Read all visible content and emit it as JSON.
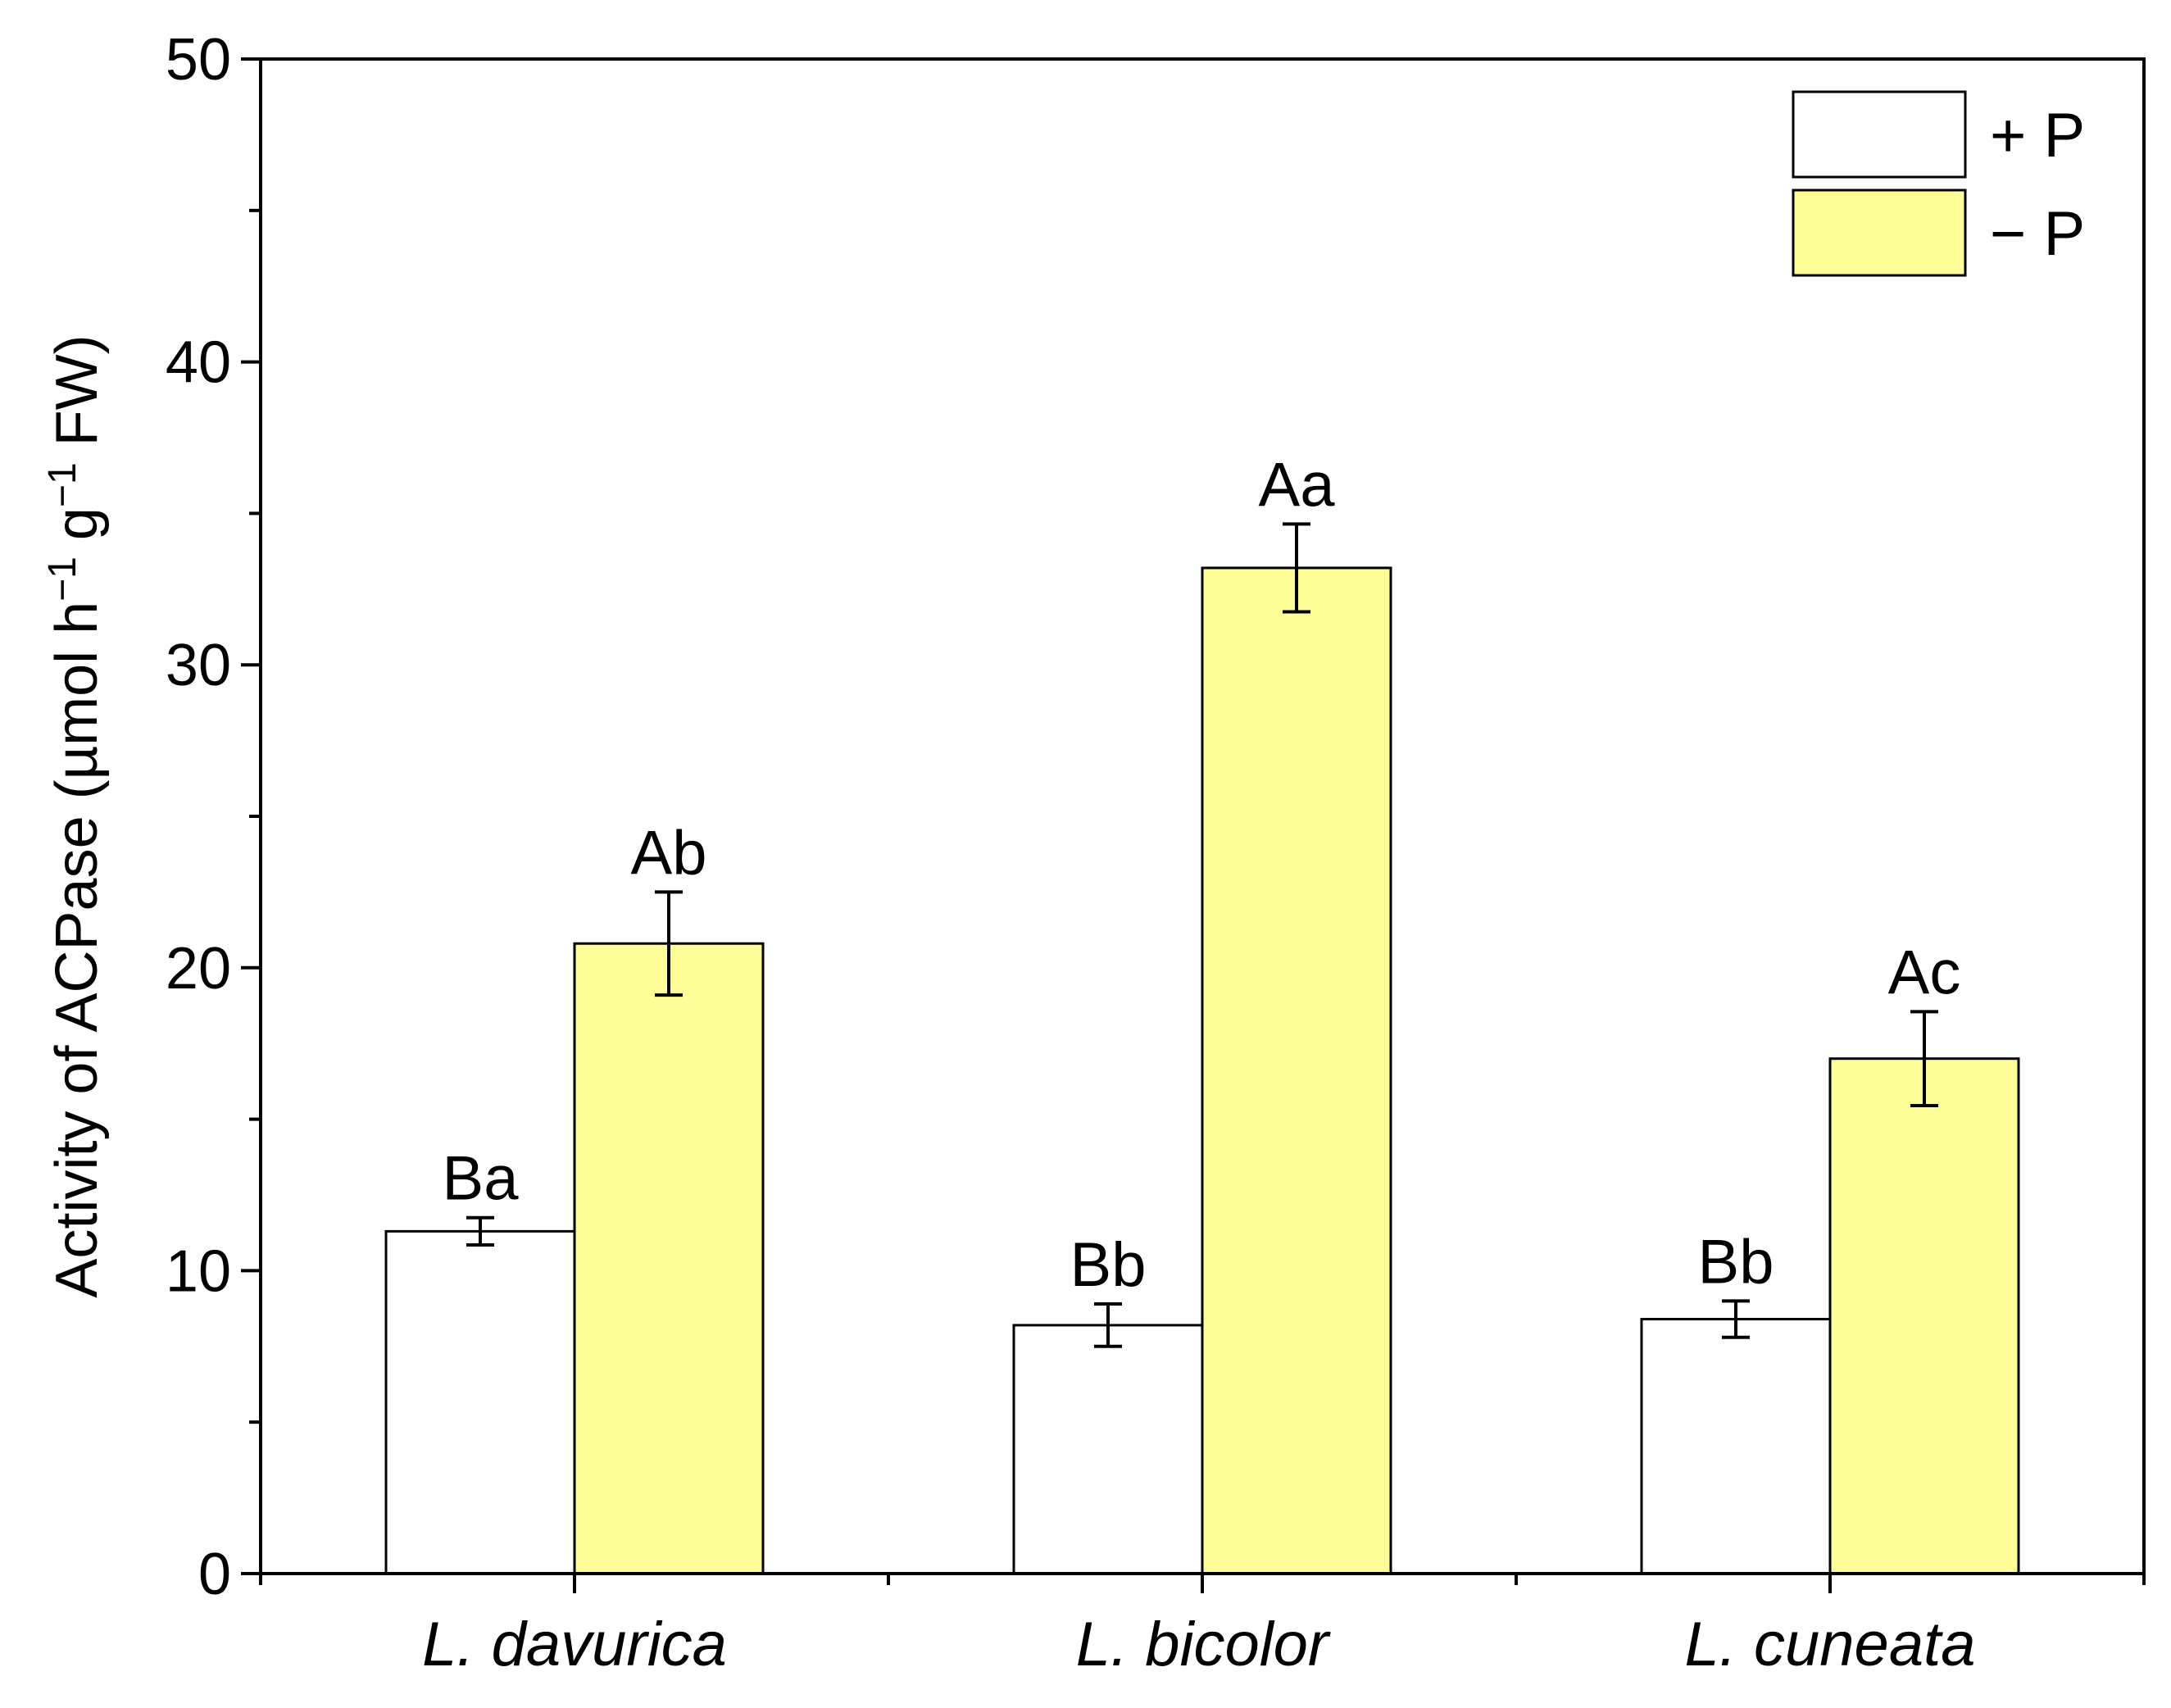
{
  "chart_data": {
    "type": "bar",
    "ylabel": {
      "prefix": "Activity of ACPase (µmol h",
      "sup1": "−1",
      "middle": " g",
      "sup2": "−1",
      "suffix": " FW)"
    },
    "ylim": [
      0,
      50
    ],
    "yticks": [
      0,
      10,
      20,
      30,
      40,
      50
    ],
    "categories": [
      "L. davurica",
      "L. bicolor",
      "L. cuneata"
    ],
    "series": [
      {
        "name": "+ P",
        "color": "#ffffff",
        "values": [
          11.3,
          8.2,
          8.4
        ],
        "errors": [
          0.45,
          0.7,
          0.6
        ],
        "labels": [
          "Ba",
          "Bb",
          "Bb"
        ]
      },
      {
        "name": "− P",
        "color": "#ffff99",
        "values": [
          20.8,
          33.2,
          17.0
        ],
        "errors": [
          1.7,
          1.45,
          1.55
        ],
        "labels": [
          "Ab",
          "Aa",
          "Ac"
        ]
      }
    ],
    "legend": "top-right",
    "grid": false
  }
}
